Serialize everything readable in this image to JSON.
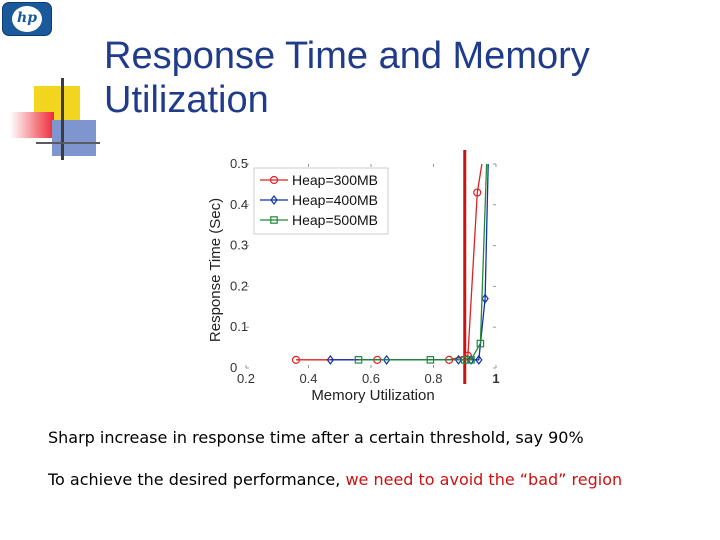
{
  "slide": {
    "title": "Response Time and Memory Utilization",
    "bullet1": "Sharp increase in response time after a certain threshold, say 90%",
    "bullet2_start": "To achieve the desired performance, ",
    "bullet2_highlight": "we need to avoid the “bad” region",
    "logo_text": "hp"
  },
  "chart_data": {
    "type": "line",
    "title": "",
    "xlabel": "Memory Utilization",
    "ylabel": "Response Time (Sec)",
    "xlim": [
      0.2,
      1.0
    ],
    "ylim": [
      0,
      0.5
    ],
    "x_ticks": [
      "0.2",
      "0.4",
      "0.6",
      "0.8",
      "1"
    ],
    "y_ticks": [
      "0",
      "0.1",
      "0.2",
      "0.3",
      "0.4",
      "0.5"
    ],
    "legend_position": "top-left",
    "threshold_x": 0.9,
    "threshold_color": "#cc1111",
    "series": [
      {
        "name": "Heap=300MB",
        "color": "#dd2222",
        "marker": "circle",
        "points": [
          [
            0.36,
            0.02
          ],
          [
            0.62,
            0.02
          ],
          [
            0.85,
            0.02
          ],
          [
            0.91,
            0.03
          ],
          [
            0.94,
            0.43
          ],
          [
            0.955,
            0.5
          ]
        ]
      },
      {
        "name": "Heap=400MB",
        "color": "#1133aa",
        "marker": "diamond",
        "points": [
          [
            0.47,
            0.02
          ],
          [
            0.65,
            0.02
          ],
          [
            0.88,
            0.02
          ],
          [
            0.92,
            0.02
          ],
          [
            0.945,
            0.02
          ],
          [
            0.965,
            0.17
          ],
          [
            0.975,
            0.5
          ]
        ]
      },
      {
        "name": "Heap=500MB",
        "color": "#22883a",
        "marker": "square",
        "points": [
          [
            0.56,
            0.02
          ],
          [
            0.79,
            0.02
          ],
          [
            0.9,
            0.02
          ],
          [
            0.92,
            0.02
          ],
          [
            0.95,
            0.06
          ],
          [
            0.97,
            0.5
          ]
        ]
      }
    ]
  }
}
